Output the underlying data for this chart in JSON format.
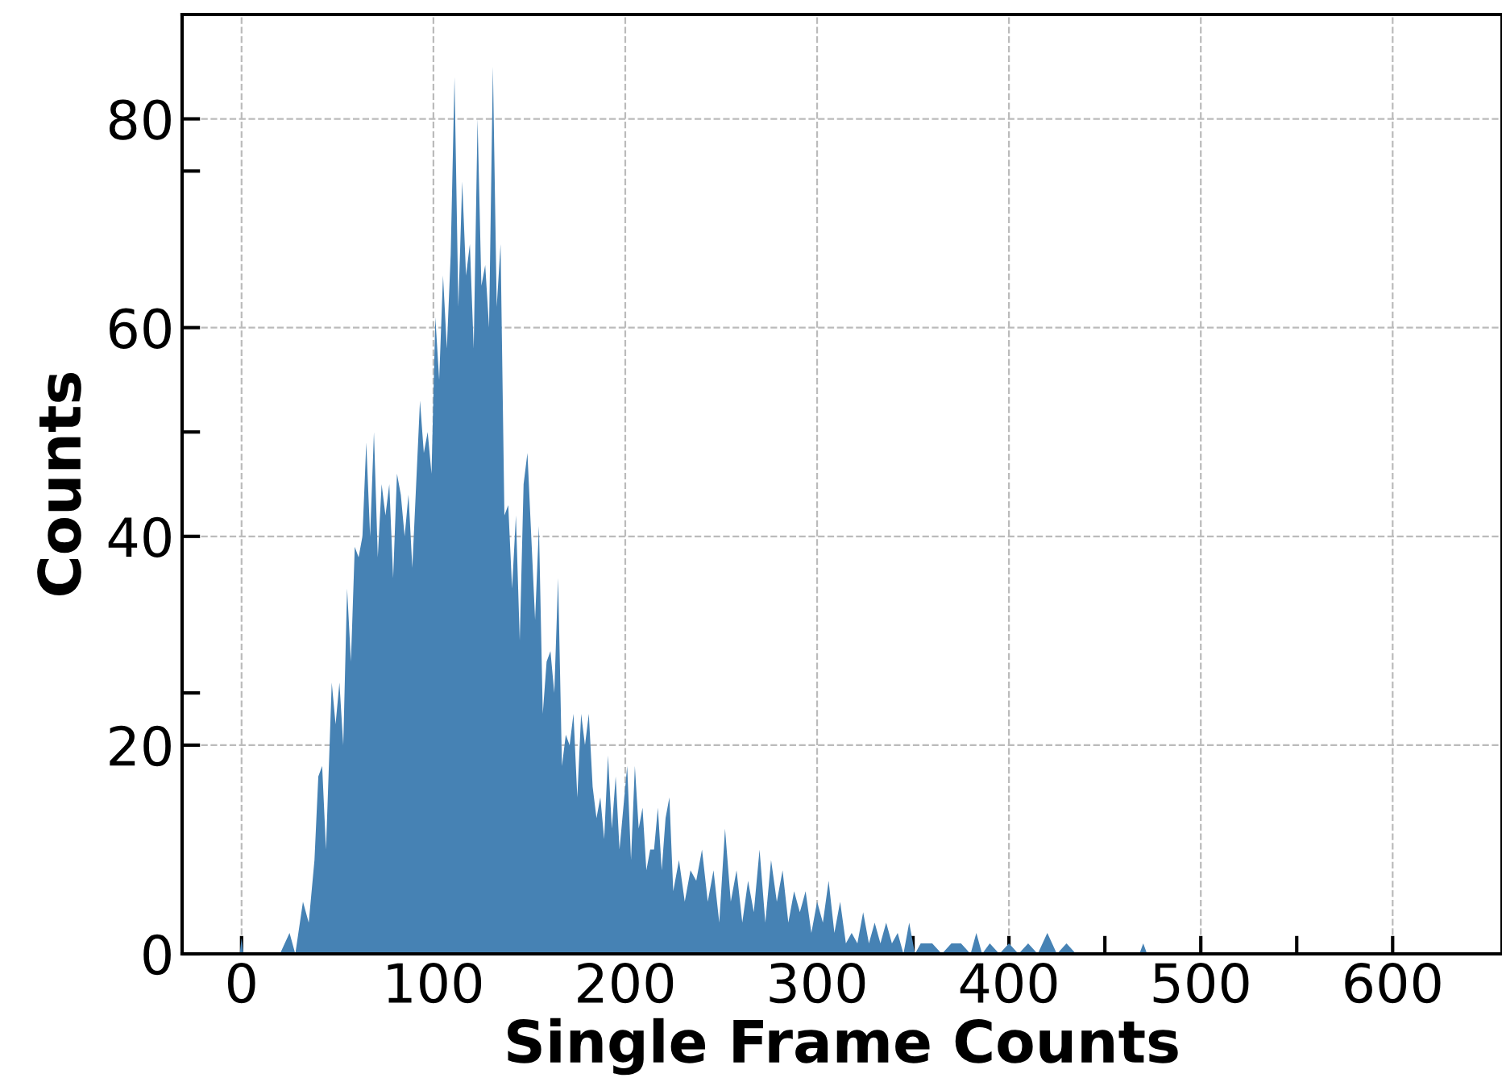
{
  "chart_data": {
    "type": "area",
    "xlabel": "Single Frame Counts",
    "ylabel": "Counts",
    "color": "#4682b4",
    "xlim": [
      -31,
      657
    ],
    "ylim": [
      0,
      90
    ],
    "xticks": [
      0,
      {
        "value": 50,
        "label": null
      },
      100,
      {
        "value": 150,
        "label": null
      },
      200,
      {
        "value": 250,
        "label": null
      },
      300,
      {
        "value": 350,
        "label": null
      },
      400,
      {
        "value": 450,
        "label": null
      },
      500,
      {
        "value": 550,
        "label": null
      },
      600
    ],
    "yticks": [
      0,
      20,
      {
        "value": 25,
        "label": null
      },
      40,
      {
        "value": 50,
        "label": null
      },
      60,
      {
        "value": 75,
        "label": null
      },
      80
    ],
    "grid": true,
    "x": [
      -1,
      0,
      1,
      20,
      25,
      28,
      32,
      35,
      38,
      40,
      42,
      44,
      47,
      49,
      51,
      53,
      55,
      57,
      59,
      61,
      63,
      65,
      67,
      69,
      71,
      73,
      75,
      77,
      79,
      81,
      83,
      85,
      87,
      89,
      91,
      93,
      95,
      97,
      99,
      101,
      103,
      105,
      107,
      109,
      111,
      113,
      115,
      117,
      119,
      121,
      123,
      125,
      127,
      129,
      131,
      133,
      135,
      137,
      139,
      141,
      143,
      145,
      147,
      149,
      151,
      153,
      155,
      157,
      159,
      161,
      163,
      165,
      167,
      169,
      171,
      173,
      175,
      177,
      179,
      181,
      183,
      185,
      187,
      189,
      191,
      193,
      195,
      197,
      199,
      201,
      203,
      205,
      207,
      209,
      211,
      213,
      215,
      217,
      219,
      221,
      223,
      225,
      228,
      231,
      234,
      237,
      240,
      243,
      246,
      249,
      252,
      255,
      258,
      261,
      264,
      267,
      270,
      273,
      276,
      279,
      282,
      285,
      288,
      291,
      294,
      297,
      300,
      303,
      306,
      309,
      312,
      315,
      318,
      321,
      324,
      327,
      330,
      333,
      336,
      339,
      342,
      345,
      348,
      351,
      354,
      360,
      365,
      370,
      375,
      380,
      383,
      386,
      390,
      395,
      400,
      405,
      410,
      415,
      420,
      425,
      430,
      435,
      468,
      470,
      472,
      650
    ],
    "values": [
      0,
      1.5,
      0,
      0,
      2,
      0,
      5,
      3,
      9,
      17,
      18,
      10,
      26,
      22,
      26,
      20,
      35,
      28,
      39,
      38,
      40,
      49,
      40,
      50,
      38,
      45,
      42,
      45,
      36,
      46,
      44,
      40,
      44,
      37,
      45,
      53,
      48,
      50,
      46,
      61,
      55,
      65,
      58,
      67,
      84,
      62,
      74,
      65,
      68,
      58,
      80,
      64,
      66,
      60,
      85,
      62,
      68,
      42,
      43,
      35,
      42,
      30,
      45,
      48,
      40,
      32,
      41,
      23,
      28,
      29,
      25,
      36,
      18,
      21,
      20,
      23,
      15,
      23,
      20,
      23,
      16,
      13,
      15,
      11,
      19,
      12,
      17,
      10,
      14,
      18,
      9,
      18,
      12,
      14,
      8,
      10,
      10,
      14,
      8,
      13,
      15,
      6,
      9,
      5,
      8,
      7,
      10,
      5,
      8,
      3,
      12,
      5,
      8,
      3,
      7,
      4,
      10,
      3,
      9,
      5,
      8,
      3,
      6,
      4,
      6,
      2,
      5,
      3,
      7,
      2,
      5,
      1,
      2,
      1,
      4,
      1,
      3,
      1,
      3,
      1,
      2,
      0,
      3,
      0,
      1,
      1,
      0,
      1,
      1,
      0,
      2,
      0,
      1,
      0,
      1,
      0,
      1,
      0,
      2,
      0,
      1,
      0,
      0,
      1,
      0,
      0
    ]
  }
}
